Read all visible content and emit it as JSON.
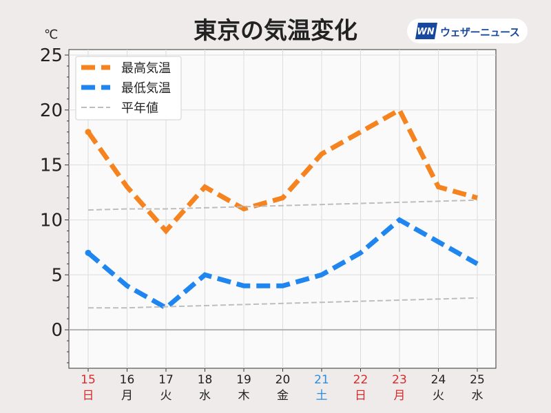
{
  "chart_data": {
    "type": "line",
    "title": "東京の気温変化",
    "unit_label": "℃",
    "x": [
      "15",
      "16",
      "17",
      "18",
      "19",
      "20",
      "21",
      "22",
      "23",
      "24",
      "25"
    ],
    "weekdays": [
      "日",
      "月",
      "火",
      "水",
      "木",
      "金",
      "土",
      "日",
      "月",
      "火",
      "水"
    ],
    "day_colors": [
      "#d92b2b",
      "#222222",
      "#222222",
      "#222222",
      "#222222",
      "#222222",
      "#2a8ee0",
      "#d92b2b",
      "#d92b2b",
      "#222222",
      "#222222"
    ],
    "ylim": [
      -3.5,
      25.5
    ],
    "yticks": [
      0,
      5,
      10,
      15,
      20,
      25
    ],
    "grid": true,
    "legend_position": "top-left",
    "series": [
      {
        "name": "最高気温",
        "color": "#f5831f",
        "style": "dashed-thick",
        "values": [
          18,
          13,
          9,
          13,
          11,
          12,
          16,
          18,
          20,
          13,
          12
        ]
      },
      {
        "name": "最低気温",
        "color": "#1f86f0",
        "style": "dashed-thick",
        "values": [
          7,
          4,
          2,
          5,
          4,
          4,
          5,
          7,
          10,
          8,
          6
        ]
      },
      {
        "name": "平年値",
        "color": "#bdbdbd",
        "style": "dashed-thin",
        "values": [
          10.9,
          11.0,
          11.0,
          11.1,
          11.2,
          11.3,
          11.4,
          11.5,
          11.6,
          11.7,
          11.8
        ]
      },
      {
        "name": "",
        "color": "#bdbdbd",
        "style": "dashed-thin",
        "values": [
          2.0,
          2.0,
          2.1,
          2.2,
          2.3,
          2.4,
          2.5,
          2.6,
          2.7,
          2.8,
          2.9
        ]
      }
    ]
  },
  "brand": {
    "logo_text": "WN",
    "name": "ウェザーニュース",
    "logo_color": "#17479e"
  }
}
